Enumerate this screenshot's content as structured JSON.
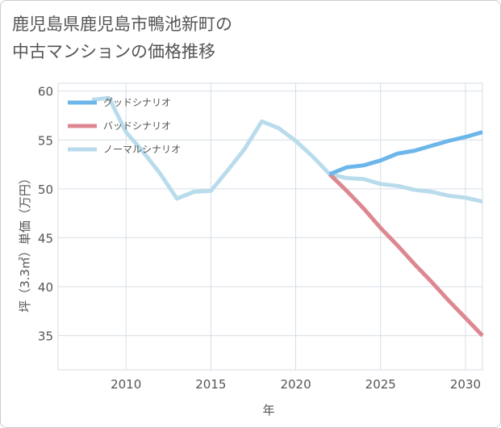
{
  "title_lines": [
    "鹿児島県鹿児島市鴨池新町の",
    "中古マンションの価格推移"
  ],
  "chart_data": {
    "type": "line",
    "xlabel": "年",
    "ylabel": "坪（3.3㎡）単価（万円）",
    "xlim": [
      2006,
      2031
    ],
    "ylim": [
      31.5,
      60.8
    ],
    "xticks": [
      2010,
      2015,
      2020,
      2025,
      2030
    ],
    "yticks": [
      35,
      40,
      45,
      50,
      55,
      60
    ],
    "grid": true,
    "legend_position": "top-left",
    "series": [
      {
        "name": "グッドシナリオ",
        "color": "#6cb6ea",
        "x": [
          2022,
          2023,
          2024,
          2025,
          2026,
          2027,
          2028,
          2029,
          2030,
          2031
        ],
        "y": [
          51.5,
          52.2,
          52.4,
          52.9,
          53.6,
          53.9,
          54.4,
          54.9,
          55.3,
          55.8
        ]
      },
      {
        "name": "バッドシナリオ",
        "color": "#dd8891",
        "x": [
          2022,
          2023,
          2024,
          2025,
          2026,
          2027,
          2028,
          2029,
          2030,
          2031
        ],
        "y": [
          51.5,
          49.8,
          48.0,
          46.0,
          44.2,
          42.3,
          40.5,
          38.6,
          36.8,
          35.0
        ]
      },
      {
        "name": "ノーマルシナリオ",
        "color": "#b9dcec",
        "x": [
          2008,
          2009,
          2010,
          2011,
          2012,
          2013,
          2014,
          2015,
          2016,
          2017,
          2018,
          2019,
          2020,
          2021,
          2022,
          2023,
          2024,
          2025,
          2026,
          2027,
          2028,
          2029,
          2030,
          2031
        ],
        "y": [
          59.1,
          59.3,
          55.8,
          53.8,
          51.6,
          49.0,
          49.7,
          49.8,
          51.9,
          54.1,
          56.9,
          56.2,
          54.9,
          53.3,
          51.5,
          51.1,
          51.0,
          50.5,
          50.3,
          49.9,
          49.7,
          49.3,
          49.1,
          48.7
        ]
      }
    ]
  }
}
